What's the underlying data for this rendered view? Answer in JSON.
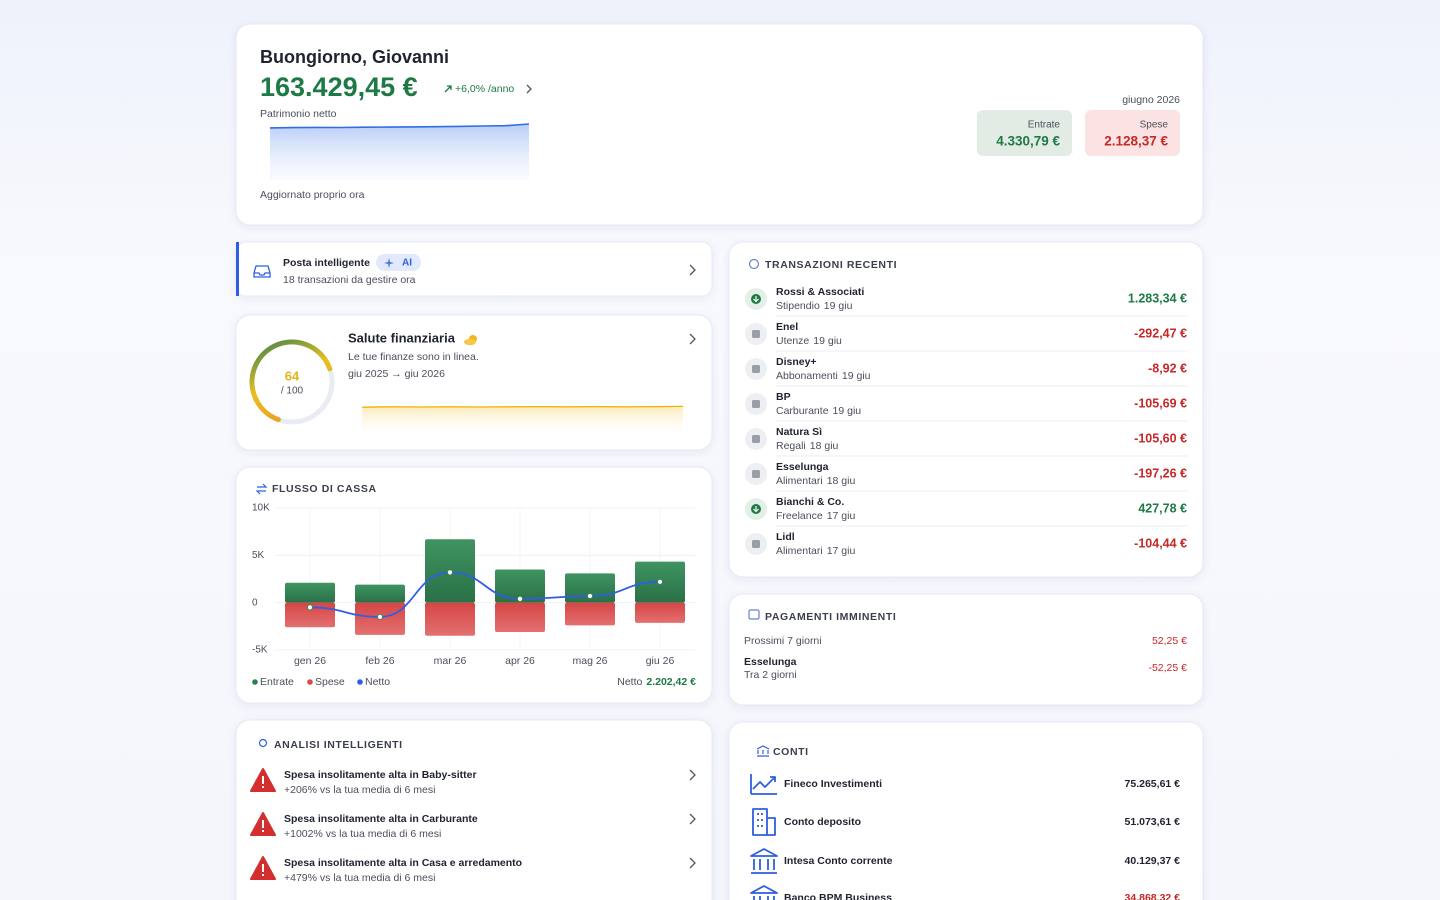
{
  "header": {
    "greeting": "Buongiorno, Giovanni",
    "net_worth": "163.429,45 €",
    "change": "+6,0% /anno",
    "net_worth_label": "Patrimonio netto",
    "updated": "Aggiornato proprio ora",
    "period": "giugno 2026",
    "income_label": "Entrate",
    "income": "4.330,79 €",
    "expenses_label": "Spese",
    "expenses": "2.128,37 €",
    "sparkline": {
      "type": "area",
      "color": "#2f6fe0",
      "values": [
        152000,
        153000,
        153500,
        153200,
        154000,
        154500,
        155000,
        155500,
        156500,
        157500,
        158500,
        163429.45
      ]
    }
  },
  "inbox": {
    "title": "Posta intelligente",
    "badge": "AI",
    "subtitle": "18 transazioni da gestire ora"
  },
  "health": {
    "title": "Salute finanziaria",
    "subtitle": "Le tue finanze sono in linea.",
    "range": "giu 2025 → giu 2026",
    "score": 64,
    "score_max": {
      "value": 100,
      "label": "/ 100"
    },
    "sparkline": {
      "type": "area",
      "color": "#f0b400",
      "values": [
        62,
        63,
        62.5,
        63,
        62.5,
        63,
        63.5,
        63,
        63.5,
        63,
        63.5,
        64
      ]
    }
  },
  "cash_flow": {
    "type": "bar",
    "title": "FLUSSO DI CASSA",
    "categories": [
      "gen 26",
      "feb 26",
      "mar 26",
      "apr 26",
      "mag 26",
      "giu 26"
    ],
    "series": [
      {
        "name": "Entrate",
        "color": "#2e7d4f",
        "values": [
          2100,
          1900,
          6700,
          3500,
          3100,
          4330.79
        ]
      },
      {
        "name": "Spese",
        "color": "#d84a4a",
        "values": [
          -2600,
          -3400,
          -3500,
          -3100,
          -2400,
          -2128.37
        ]
      },
      {
        "name": "Netto",
        "color": "#2f5fe0",
        "type": "line",
        "values": [
          -500,
          -1500,
          3200,
          400,
          700,
          2202.42
        ]
      }
    ],
    "ylim": [
      -5000,
      10000
    ],
    "yticks": [
      {
        "value": -5000,
        "label": "-5K"
      },
      0,
      {
        "value": 5000,
        "label": "5K"
      },
      {
        "value": 10000,
        "label": "10K"
      }
    ],
    "grid": true,
    "net_total": "2.202,42 €"
  },
  "insights": {
    "title": "ANALISI INTELLIGENTI",
    "items": [
      {
        "title": "Spesa insolitamente alta in Baby-sitter",
        "detail": "+206% vs la tua media di 6 mesi"
      },
      {
        "title": "Spesa insolitamente alta in Carburante",
        "detail": "+1002% vs la tua media di 6 mesi"
      },
      {
        "title": "Spesa insolitamente alta in Casa e arredamento",
        "detail": "+479% vs la tua media di 6 mesi"
      }
    ]
  },
  "transactions": {
    "title": "TRANSAZIONI RECENTI",
    "items": [
      {
        "name": "Rossi & Associati",
        "category": "Stipendio",
        "date": "19 giu",
        "amount": "1.283,34 €"
      },
      {
        "name": "Enel",
        "category": "Utenze",
        "date": "19 giu",
        "amount": "-292,47 €"
      },
      {
        "name": "Disney+",
        "category": "Abbonamenti",
        "date": "19 giu",
        "amount": "-8,92 €"
      },
      {
        "name": "BP",
        "category": "Carburante",
        "date": "19 giu",
        "amount": "-105,69 €"
      },
      {
        "name": "Natura Sì",
        "category": "Regali",
        "date": "18 giu",
        "amount": "-105,60 €"
      },
      {
        "name": "Esselunga",
        "category": "Alimentari",
        "date": "18 giu",
        "amount": "-197,26 €"
      },
      {
        "name": "Bianchi & Co.",
        "category": "Freelance",
        "date": "17 giu",
        "amount": "427,78 €"
      },
      {
        "name": "Lidl",
        "category": "Alimentari",
        "date": "17 giu",
        "amount": "-104,44 €"
      }
    ]
  },
  "upcoming": {
    "title": "PAGAMENTI IMMINENTI",
    "summary_label": "Prossimi 7 giorni",
    "summary_amount": "52,25 €",
    "items": [
      {
        "name": "Esselunga",
        "due": "Tra 2 giorni",
        "amount": "-52,25 €"
      }
    ]
  },
  "accounts": {
    "title": "CONTI",
    "items": [
      {
        "name": "Fineco Investimenti",
        "balance": "75.265,61 €"
      },
      {
        "name": "Conto deposito",
        "balance": "51.073,61 €"
      },
      {
        "name": "Intesa Conto corrente",
        "balance": "40.129,37 €"
      },
      {
        "name": "Banco BPM Business",
        "balance": "34.868,32 €"
      }
    ]
  }
}
